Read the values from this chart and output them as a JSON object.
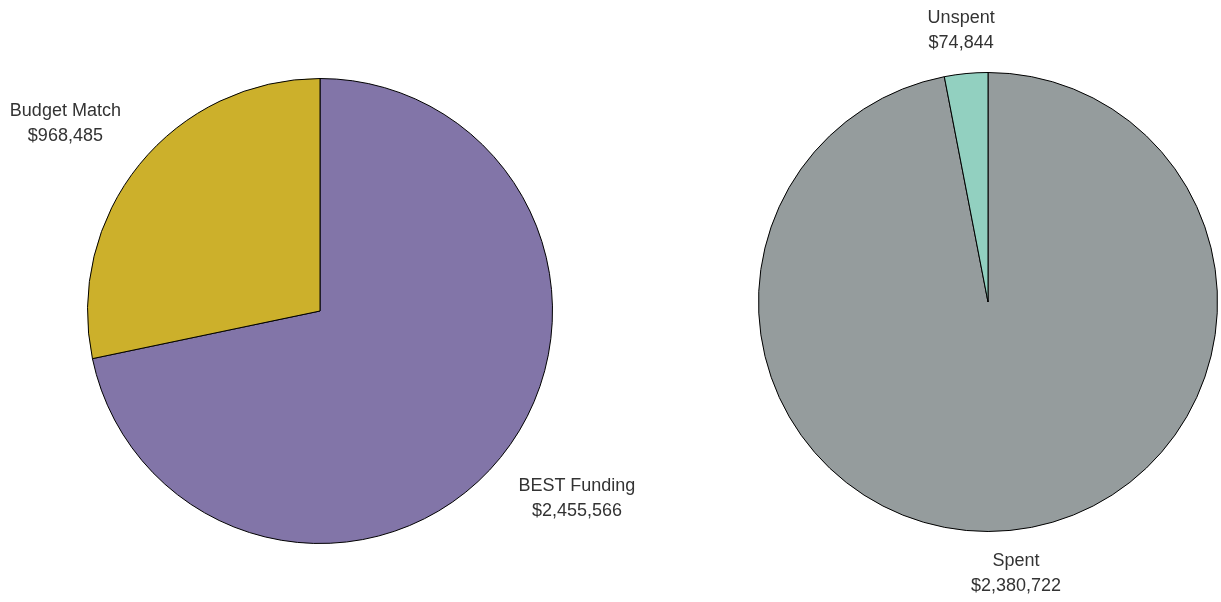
{
  "chart_data": [
    {
      "type": "pie",
      "categories": [
        "BEST Funding",
        "Budget Match"
      ],
      "values": [
        2455566,
        968485
      ],
      "colors": [
        "#8275a8",
        "#ccb02b"
      ],
      "value_labels": [
        "$2,455,566",
        "$968,485"
      ],
      "legend": false
    },
    {
      "type": "pie",
      "categories": [
        "Spent",
        "Unspent"
      ],
      "values": [
        2380722,
        74844
      ],
      "colors": [
        "#959c9d",
        "#92d0c0"
      ],
      "value_labels": [
        "$2,380,722",
        "$74,844"
      ],
      "legend": false
    }
  ]
}
